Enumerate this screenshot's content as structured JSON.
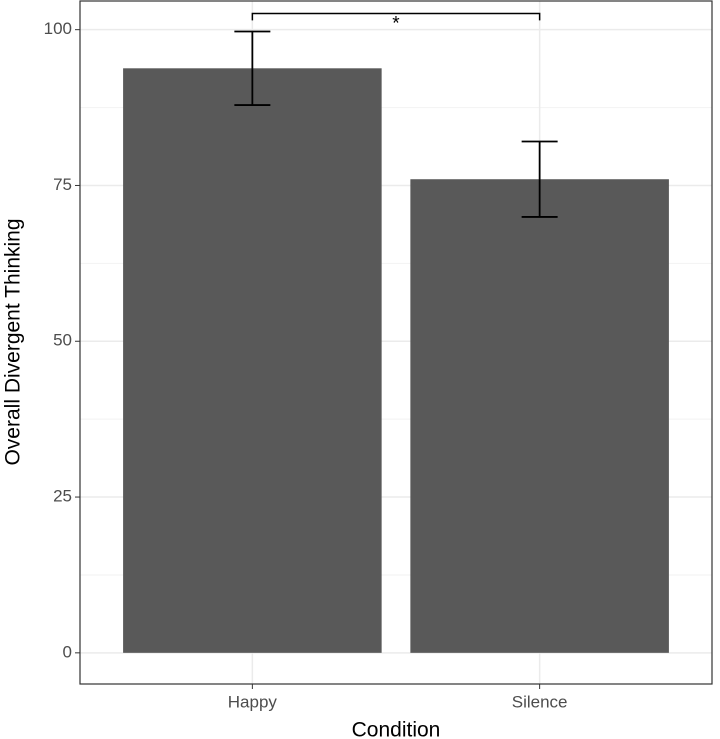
{
  "chart_data": {
    "type": "bar",
    "x_label": "Condition",
    "y_label": "Overall Divergent Thinking",
    "categories": [
      "Happy",
      "Silence"
    ],
    "values": [
      93.8,
      76.0
    ],
    "errors": [
      5.9,
      6.05
    ],
    "color": "#595959",
    "ylim": [
      -5,
      104.6
    ],
    "yticks": [
      0,
      25,
      50,
      75,
      100
    ],
    "y_minor_ticks": [
      12.5,
      37.5,
      62.5,
      87.5
    ],
    "grid": true,
    "significance": {
      "text": "*",
      "y": 102.6,
      "tip": 101.5
    }
  }
}
